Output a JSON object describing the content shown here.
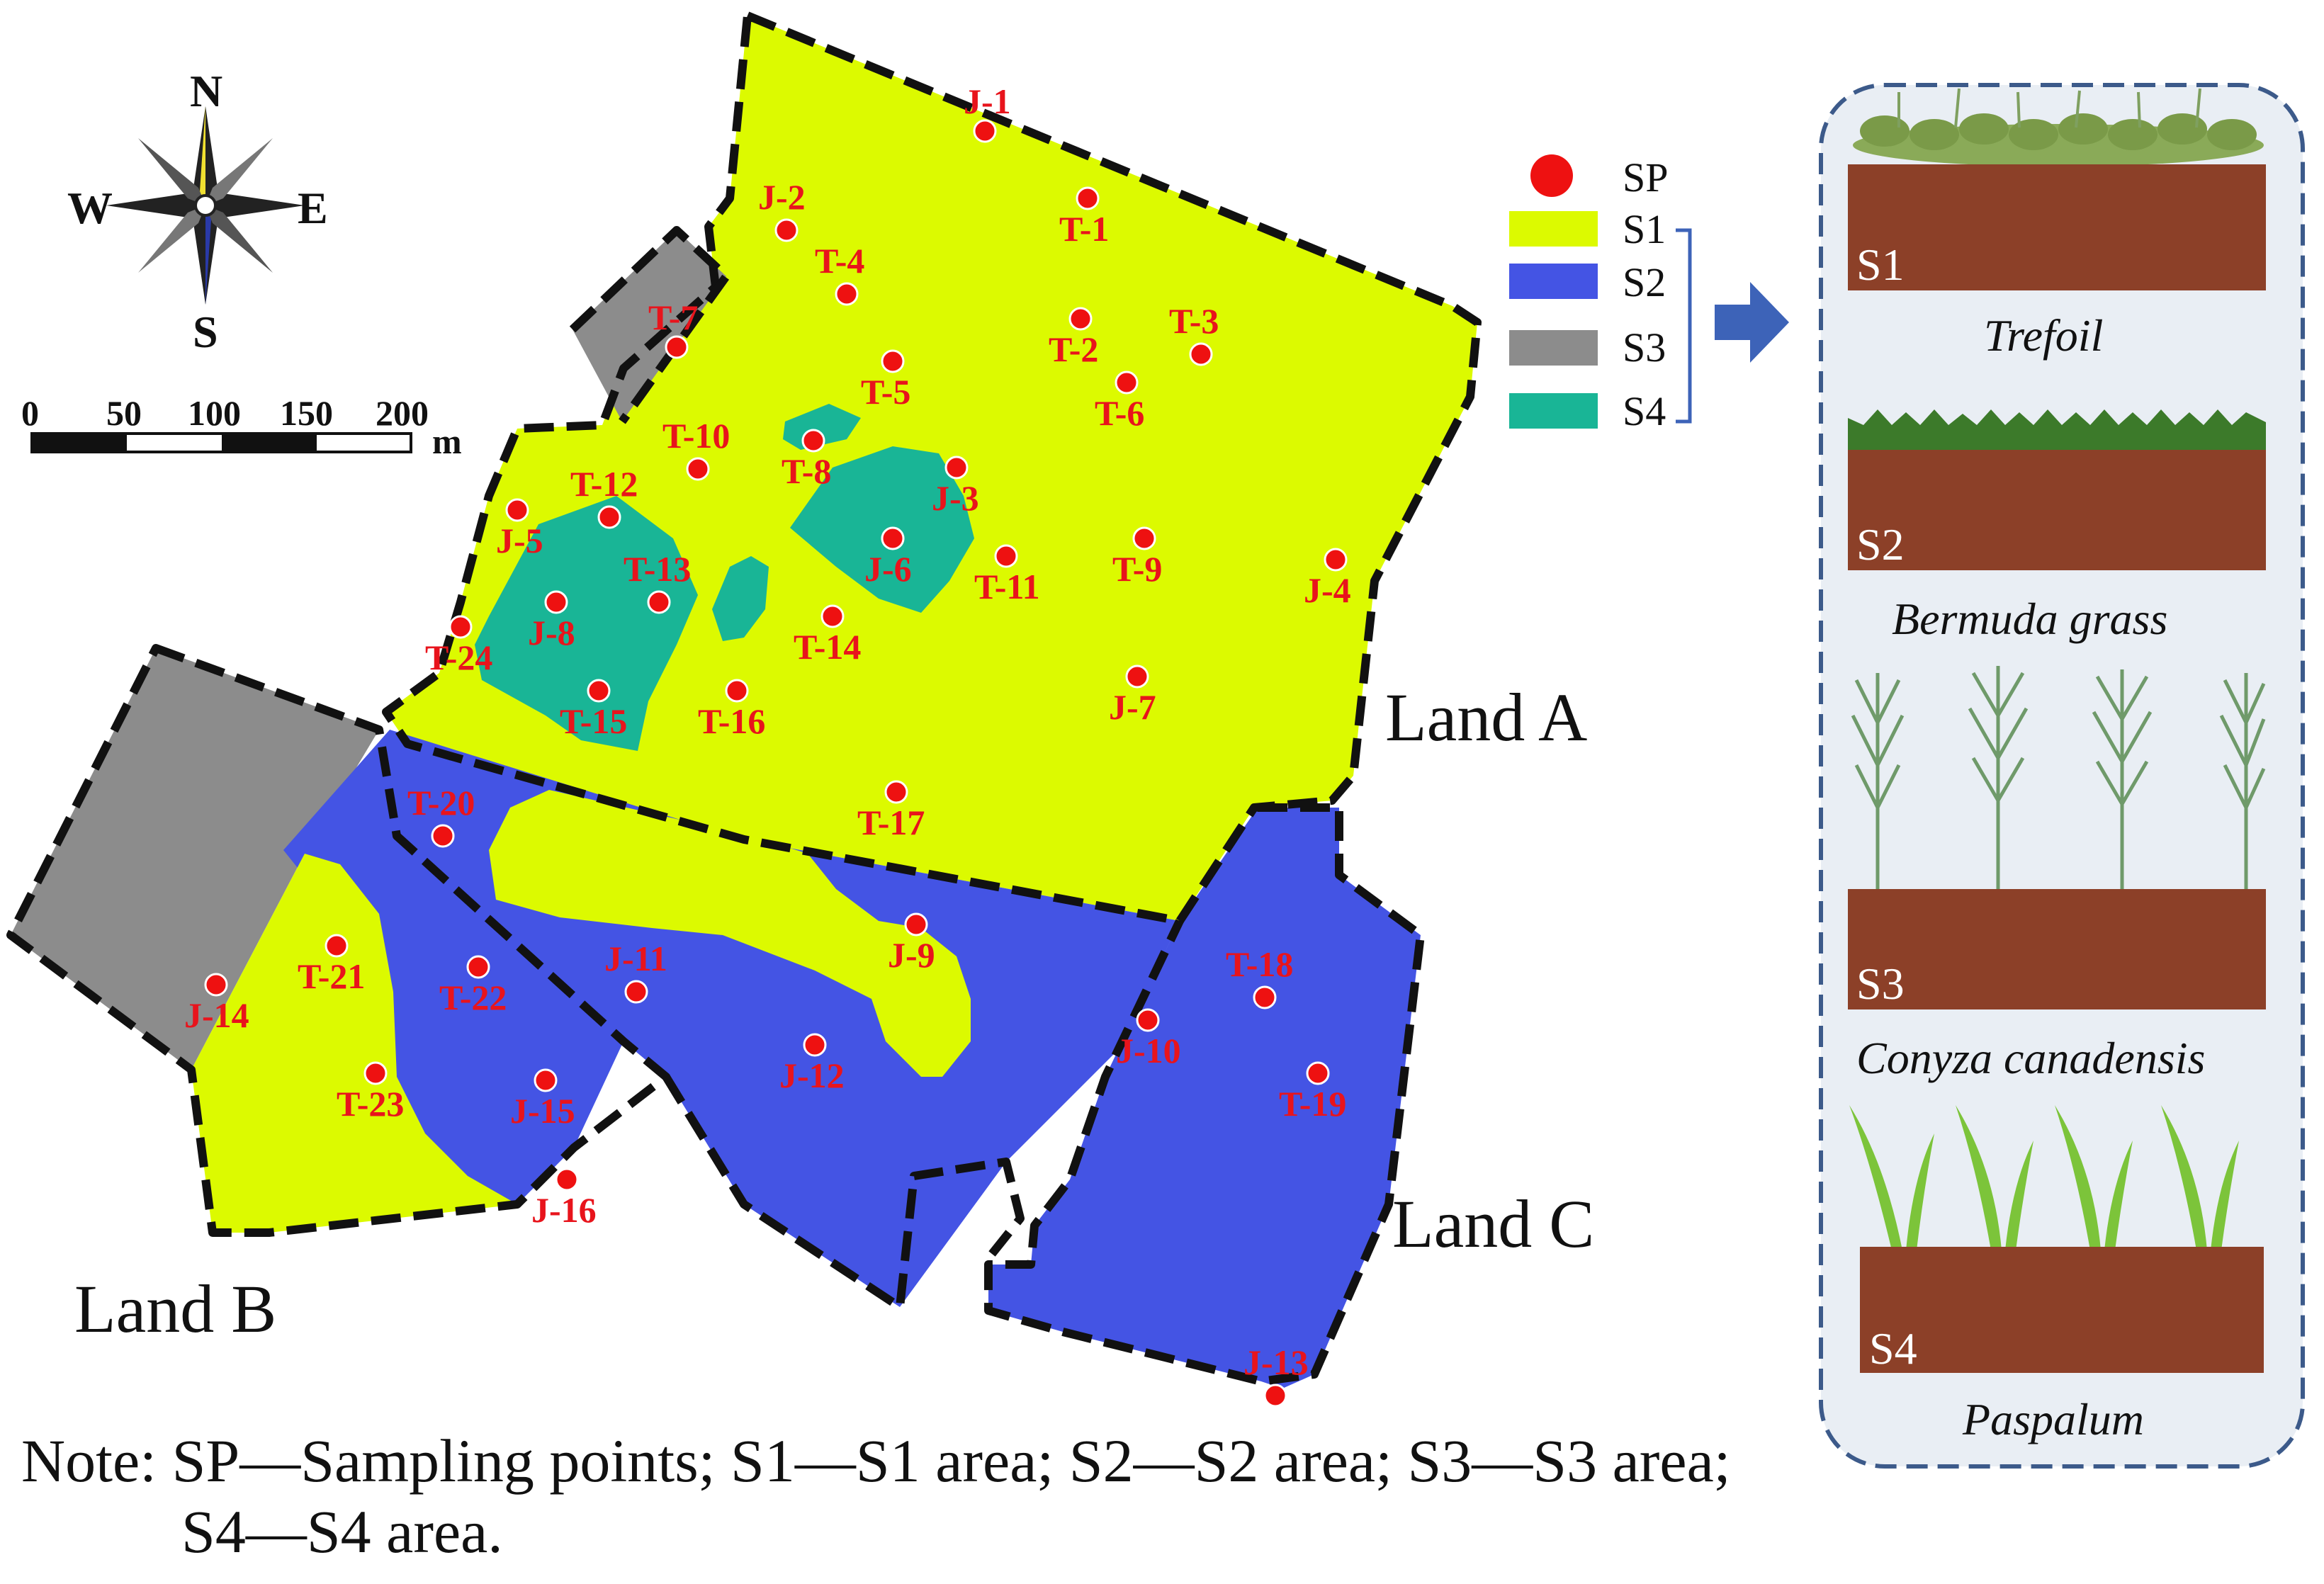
{
  "colors": {
    "S1": "#dcfa00",
    "S2": "#4454e4",
    "S3": "#8c8c8c",
    "S4": "#19b596",
    "SP": "#ee1111",
    "soil": "#8c4028",
    "panel_bg": "#e9eef4",
    "panel_border": "#3c5a8a",
    "arrow": "#3d63b8"
  },
  "compass": {
    "north": "N",
    "south": "S",
    "east": "E",
    "west": "W"
  },
  "scale_bar": {
    "ticks": [
      "0",
      "50",
      "100",
      "150",
      "200"
    ],
    "unit": "m"
  },
  "lands": {
    "a": "Land A",
    "b": "Land B",
    "c": "Land C"
  },
  "legend": {
    "items": [
      {
        "key": "SP",
        "label": "SP",
        "symbol": "dot"
      },
      {
        "key": "S1",
        "label": "S1",
        "symbol": "swatch"
      },
      {
        "key": "S2",
        "label": "S2",
        "symbol": "swatch"
      },
      {
        "key": "S3",
        "label": "S3",
        "symbol": "swatch"
      },
      {
        "key": "S4",
        "label": "S4",
        "symbol": "swatch"
      }
    ]
  },
  "panels": [
    {
      "code": "S1",
      "name": "Trefoil",
      "plant": "trefoil-icon"
    },
    {
      "code": "S2",
      "name": "Bermuda grass",
      "plant": "grass-icon"
    },
    {
      "code": "S3",
      "name": "Conyza canadensis",
      "plant": "conyza-icon"
    },
    {
      "code": "S4",
      "name": "Paspalum",
      "plant": "paspalum-icon"
    }
  ],
  "sampling_points": [
    "J-1",
    "J-2",
    "T-1",
    "T-4",
    "T-7",
    "T-2",
    "T-3",
    "T-5",
    "T-6",
    "T-10",
    "T-8",
    "T-12",
    "J-3",
    "J-5",
    "J-6",
    "T-11",
    "T-9",
    "J-4",
    "T-13",
    "J-8",
    "T-14",
    "T-24",
    "T-15",
    "T-16",
    "J-7",
    "T-20",
    "T-17",
    "J-9",
    "T-21",
    "T-22",
    "J-11",
    "T-18",
    "J-14",
    "J-10",
    "J-12",
    "T-23",
    "J-15",
    "T-19",
    "J-16",
    "J-13"
  ],
  "note": {
    "line1": "Note: SP—Sampling points; S1—S1 area; S2—S2 area; S3—S3 area;",
    "line2": "S4—S4 area."
  }
}
